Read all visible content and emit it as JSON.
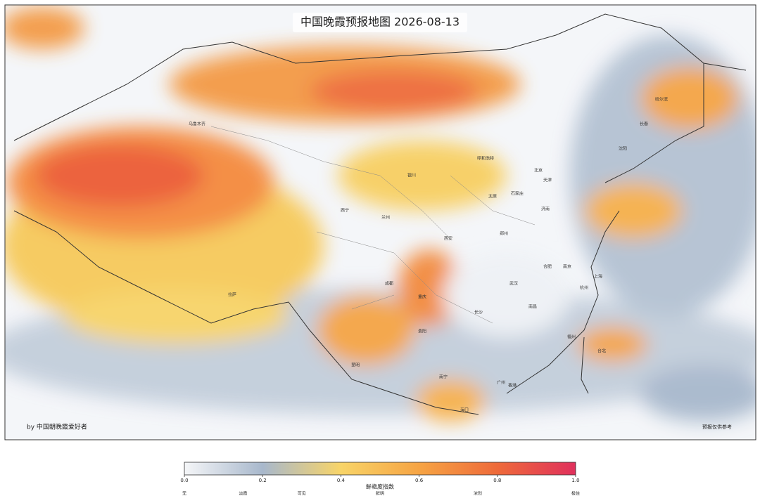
{
  "title": "中国晚霞预报地图  2026-08-13",
  "credit": "by 中国朝晚霞爱好者",
  "disclaimer": "预报仅供参考",
  "cities": [
    "乌鲁木齐",
    "拉萨",
    "西宁",
    "兰州",
    "银川",
    "呼和浩特",
    "北京",
    "天津",
    "石家庄",
    "太原",
    "济南",
    "郑州",
    "西安",
    "成都",
    "重庆",
    "贵阳",
    "昆明",
    "南宁",
    "广州",
    "香港",
    "海口",
    "长沙",
    "南昌",
    "武汉",
    "合肥",
    "南京",
    "上海",
    "杭州",
    "福州",
    "台北",
    "沈阳",
    "长春",
    "哈尔滨"
  ],
  "colorbar": {
    "label": "鲜艳度指数",
    "range": [
      0,
      1
    ],
    "ticks": [
      {
        "value": 0,
        "label": "0.0"
      },
      0.2,
      0.4,
      0.6,
      0.8,
      {
        "value": 1,
        "label": "1.0"
      }
    ],
    "levels": [
      {
        "value": 0,
        "label": "无"
      },
      {
        "value": 0.15,
        "label": "淡霞"
      },
      {
        "value": 0.3,
        "label": "可见"
      },
      {
        "value": 0.5,
        "label": "鲜明"
      },
      {
        "value": 0.75,
        "label": "浓烈"
      },
      {
        "value": 1,
        "label": "极佳"
      }
    ],
    "colors": [
      "#f5f6f8",
      "#a8b8cc",
      "#f8d468",
      "#f6a444",
      "#ee6a3a",
      "#e0305c"
    ]
  }
}
